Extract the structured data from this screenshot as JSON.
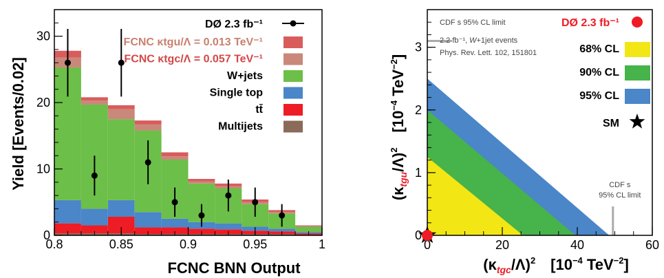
{
  "chart_data": [
    {
      "type": "bar",
      "stacked": true,
      "xlabel": "FCNC BNN Output",
      "ylabel": "Yield [Events/0.02]",
      "xlim": [
        0.8,
        1.0
      ],
      "ylim": [
        0,
        34
      ],
      "x_ticks": [
        "0.8",
        "0.85",
        "0.9",
        "0.95",
        "1"
      ],
      "y_ticks": [
        "0",
        "10",
        "20",
        "30"
      ],
      "bin_edges": [
        0.8,
        0.82,
        0.84,
        0.86,
        0.88,
        0.9,
        0.92,
        0.94,
        0.96,
        0.98,
        1.0
      ],
      "series": [
        {
          "name": "Multijets",
          "color": "#8a6a58",
          "values": [
            0.3,
            0.3,
            0.3,
            0.2,
            0.2,
            0.2,
            0.2,
            0.2,
            0.2,
            0.1
          ]
        },
        {
          "name": "tt̄",
          "color": "#ee1c24",
          "values": [
            1.5,
            1.2,
            2.5,
            1.0,
            1.0,
            0.8,
            0.7,
            0.5,
            0.4,
            0.2
          ]
        },
        {
          "name": "Single top",
          "color": "#4a86c8",
          "values": [
            3.5,
            2.5,
            2.5,
            2.3,
            1.3,
            1.0,
            0.9,
            0.6,
            0.4,
            0.2
          ]
        },
        {
          "name": "W+jets",
          "color": "#6cbf48",
          "values": [
            20.0,
            15.7,
            12.2,
            12.3,
            8.9,
            5.8,
            5.3,
            3.4,
            2.3,
            0.8
          ]
        },
        {
          "name": "FCNC κtgc/Λ = 0.057 TeV⁻¹",
          "color": "#c9887a",
          "values": [
            1.5,
            0.6,
            1.5,
            0.9,
            0.5,
            0.3,
            0.3,
            0.3,
            0.2,
            0.1
          ]
        },
        {
          "name": "FCNC κtgu/Λ = 0.013 TeV⁻¹",
          "color": "#d95c5c",
          "values": [
            1.0,
            0.5,
            0.6,
            0.6,
            0.6,
            0.4,
            0.4,
            0.4,
            0.3,
            0.1
          ]
        }
      ],
      "data_points": {
        "name": "DØ 2.3 fb⁻¹",
        "x": [
          0.81,
          0.83,
          0.85,
          0.87,
          0.89,
          0.91,
          0.93,
          0.95,
          0.97
        ],
        "y": [
          26,
          9,
          26,
          11,
          5,
          3,
          6,
          5,
          3
        ],
        "err": [
          5.1,
          3.0,
          5.1,
          3.3,
          2.2,
          1.7,
          2.4,
          2.2,
          1.7
        ]
      }
    },
    {
      "type": "area",
      "xlabel_parts": [
        "(κ",
        "tgc",
        "/Λ)",
        "2",
        "[10",
        "−4",
        " TeV",
        "−2",
        "]"
      ],
      "ylabel_parts": [
        "(κ",
        "tgu",
        "/Λ)",
        "2",
        "[10",
        "−4",
        " TeV",
        "−2",
        "]"
      ],
      "xlim": [
        0,
        60
      ],
      "ylim": [
        0,
        3.6
      ],
      "x_ticks": [
        "0",
        "20",
        "40",
        "60"
      ],
      "y_ticks": [
        "0",
        "1",
        "2",
        "3"
      ],
      "series": [
        {
          "name": "95% CL",
          "color": "#4a86c8",
          "x_intercept": 48.5,
          "y_intercept": 2.5
        },
        {
          "name": "90% CL",
          "color": "#46b34b",
          "x_intercept": 39.5,
          "y_intercept": 2.0
        },
        {
          "name": "68% CL",
          "color": "#f2e614",
          "x_intercept": 25.5,
          "y_intercept": 1.25
        }
      ],
      "measurement": {
        "name": "DØ 2.3 fb⁻¹",
        "x": 0,
        "y": 0,
        "color": "#ee1c24"
      },
      "sm": {
        "name": "SM",
        "x": 0,
        "y": 0
      },
      "cdf_limits": {
        "y_limit": 3.1,
        "x_limit": 49.5,
        "y_label": "CDF s 95% CL limit",
        "ref_lines": [
          "2.2 fb⁻¹, ",
          "W",
          "+1jet events",
          "Phys. Rev. Lett. 102, 151801"
        ],
        "x_label_lines": [
          "CDF s",
          "95% CL limit"
        ]
      }
    }
  ]
}
